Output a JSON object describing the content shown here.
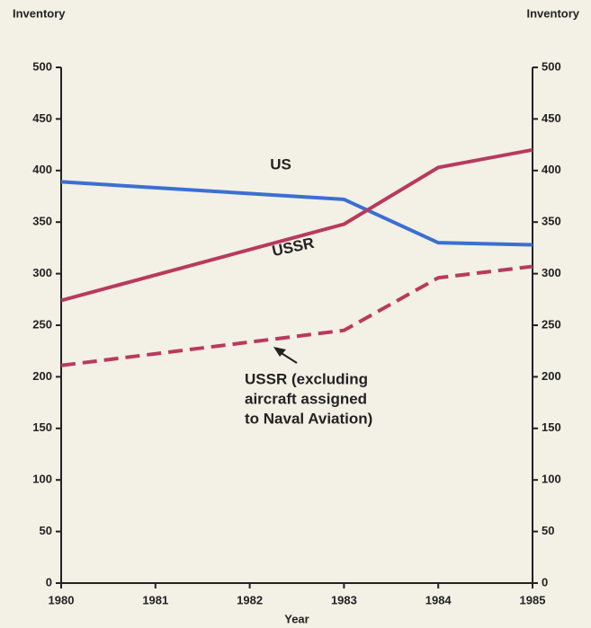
{
  "chart_data": {
    "type": "line",
    "y_label": "Inventory",
    "y2_label": "Inventory",
    "x_label": "Year",
    "x": [
      1980,
      1983,
      1984,
      1985
    ],
    "series": [
      {
        "name": "US",
        "color": "#3b6fd2",
        "values": [
          389,
          372,
          330,
          328
        ]
      },
      {
        "name": "USSR",
        "color": "#b83a5c",
        "values": [
          274,
          348,
          403,
          420
        ]
      },
      {
        "color": "#b83a5c",
        "dashed": true,
        "values": [
          211,
          245,
          296,
          307
        ],
        "axis": "y2"
      }
    ],
    "annotation_lines": [
      "USSR (excluding",
      "aircraft assigned",
      "to Naval Aviation)"
    ],
    "xlim": [
      1980,
      1985
    ],
    "xticks": [
      1980,
      1981,
      1982,
      1983,
      1984,
      1985
    ],
    "ylim": [
      0,
      500
    ],
    "yticks": [
      0,
      50,
      100,
      150,
      200,
      250,
      300,
      350,
      400,
      450,
      500
    ],
    "y2lim": [
      0,
      500
    ],
    "y2ticks": [
      0,
      50,
      100,
      150,
      200,
      250,
      300,
      350,
      400,
      450,
      500
    ]
  }
}
